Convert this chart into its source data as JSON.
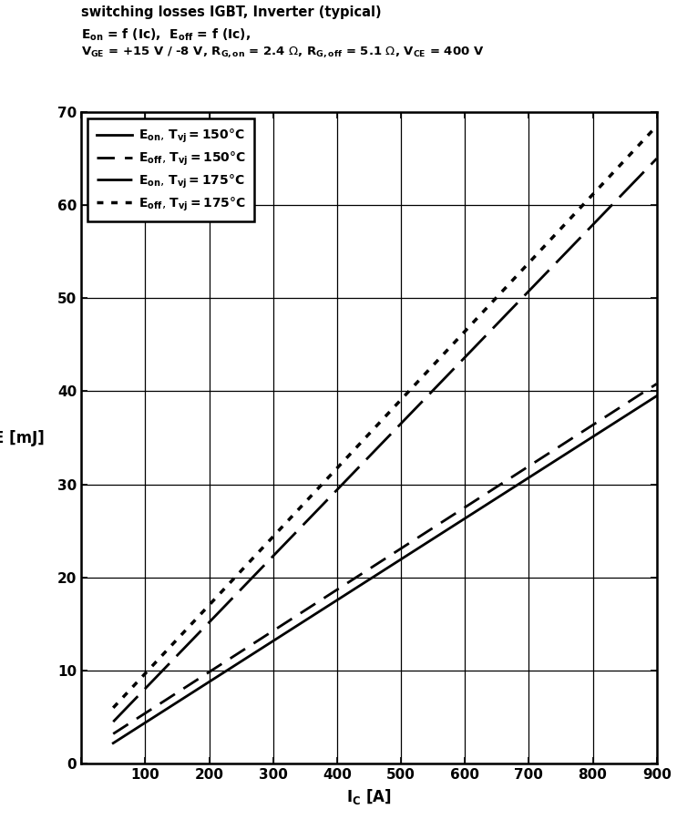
{
  "title_line1": "switching losses IGBT, Inverter (typical)",
  "title_line2": "E_on = f (Ic),  E_off = f (Ic),",
  "title_line3": "V_GE = +15 V / -8 V, R_G,on = 2.4 Ohm, R_G,off = 5.1 Ohm, V_CE = 400 V",
  "xlabel": "IC [A]",
  "ylabel": "E [mJ]",
  "xlim": [
    0,
    900
  ],
  "ylim": [
    0,
    70
  ],
  "xticks": [
    0,
    100,
    200,
    300,
    400,
    500,
    600,
    700,
    800,
    900
  ],
  "yticks": [
    0,
    10,
    20,
    30,
    40,
    50,
    60,
    70
  ],
  "ic_values": [
    50,
    900
  ],
  "eon_150": [
    2.2,
    39.5
  ],
  "eoff_150": [
    3.2,
    40.8
  ],
  "eon_175": [
    4.5,
    65.0
  ],
  "eoff_175": [
    6.0,
    68.5
  ],
  "color": "#000000",
  "background": "#ffffff"
}
